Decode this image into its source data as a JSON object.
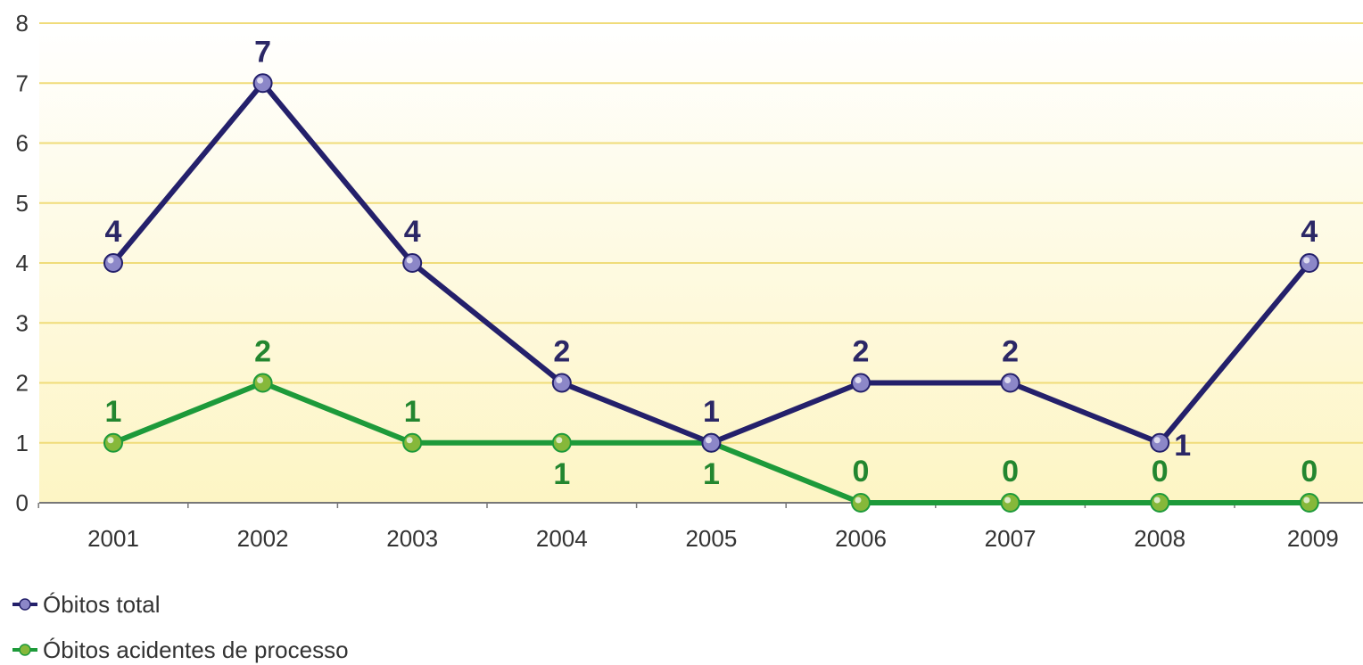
{
  "chart_data": {
    "type": "line",
    "title": "",
    "xlabel": "",
    "ylabel": "",
    "categories": [
      "2001",
      "2002",
      "2003",
      "2004",
      "2005",
      "2006",
      "2007",
      "2008",
      "2009"
    ],
    "ylim": [
      0,
      8
    ],
    "yticks": [
      "0",
      "1",
      "2",
      "3",
      "4",
      "5",
      "6",
      "7",
      "8"
    ],
    "grid": true,
    "legend_position": "bottom-left",
    "series": [
      {
        "name": "Óbitos total",
        "values": [
          4,
          7,
          4,
          2,
          1,
          2,
          2,
          1,
          4
        ],
        "color": "#24206b",
        "marker_color": "#8c87c8",
        "label_color": "#2b2766",
        "label_position": [
          "above",
          "above",
          "above",
          "above",
          "above",
          "above",
          "above",
          "right",
          "above"
        ]
      },
      {
        "name": "Óbitos acidentes de processo",
        "values": [
          1,
          2,
          1,
          1,
          1,
          0,
          0,
          0,
          0
        ],
        "color": "#1d9a3a",
        "marker_color": "#86b83a",
        "label_color": "#23862f",
        "label_position": [
          "above",
          "above",
          "above",
          "below",
          "below",
          "above",
          "above",
          "above",
          "above"
        ]
      }
    ],
    "colors": {
      "plot_background_top": "#ffffff",
      "plot_background_bottom": "#fdf5c4",
      "gridline": "#f0dc7a",
      "axis": "#777777"
    }
  }
}
